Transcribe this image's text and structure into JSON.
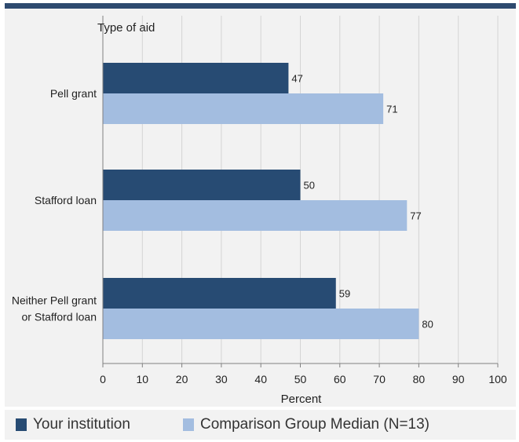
{
  "chart_data": {
    "type": "bar",
    "orientation": "horizontal",
    "category_axis_title": "Type of aid",
    "xlabel": "Percent",
    "xlim": [
      0,
      100
    ],
    "xticks": [
      0,
      10,
      20,
      30,
      40,
      50,
      60,
      70,
      80,
      90,
      100
    ],
    "grid": true,
    "legend_position": "bottom",
    "categories": [
      [
        "Pell grant"
      ],
      [
        "Stafford loan"
      ],
      [
        "Neither Pell grant",
        "or Stafford loan"
      ]
    ],
    "series": [
      {
        "name": "Your institution",
        "color": "#274b73",
        "values": [
          47,
          50,
          59
        ]
      },
      {
        "name": "Comparison Group Median (N=13)",
        "color": "#a3bde0",
        "values": [
          71,
          77,
          80
        ]
      }
    ]
  }
}
